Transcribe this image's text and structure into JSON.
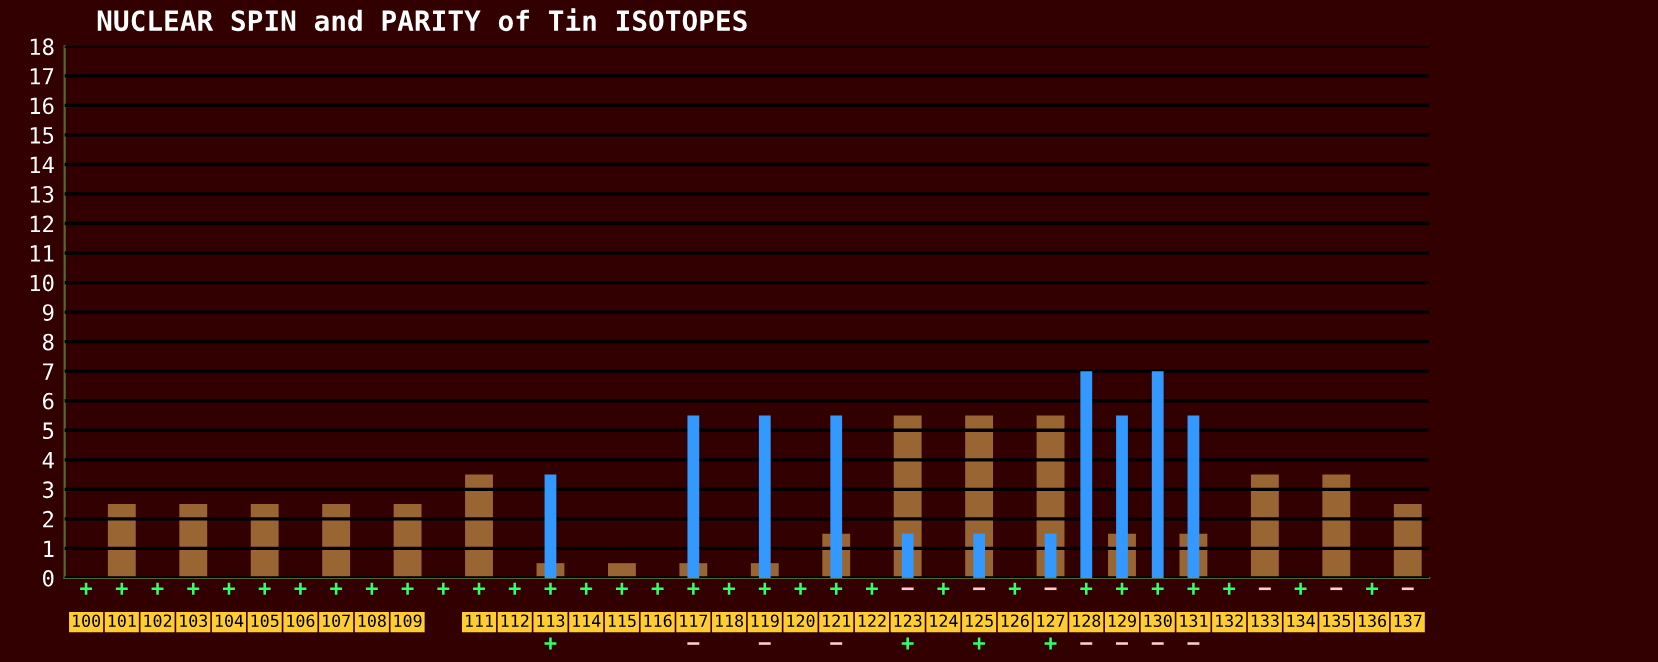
{
  "chart_data": {
    "type": "bar",
    "title": "NUCLEAR SPIN and PARITY of Tin ISOTOPES",
    "categories": [
      "100",
      "101",
      "102",
      "103",
      "104",
      "105",
      "106",
      "107",
      "108",
      "109",
      null,
      "111",
      "112",
      "113",
      "114",
      "115",
      "116",
      "117",
      "118",
      "119",
      "120",
      "121",
      "122",
      "123",
      "124",
      "125",
      "126",
      "127",
      "128",
      "129",
      "130",
      "131",
      "132",
      "133",
      "134",
      "135",
      "136",
      "137"
    ],
    "series": [
      {
        "color": "#996633",
        "values": [
          0,
          2.5,
          0,
          2.5,
          0,
          2.5,
          0,
          2.5,
          0,
          2.5,
          0,
          3.5,
          0,
          0.5,
          0,
          0.5,
          0,
          0.5,
          0,
          0.5,
          0,
          1.5,
          0,
          5.5,
          0,
          5.5,
          0,
          5.5,
          0,
          1.5,
          0,
          1.5,
          0,
          3.5,
          0,
          3.5,
          0,
          2.5
        ],
        "value_labels": [
          "+",
          "+",
          "+",
          "+",
          "+",
          "+",
          "+",
          "+",
          "+",
          "+",
          "+",
          "+",
          "+",
          "+",
          "+",
          "+",
          "+",
          "+",
          "+",
          "+",
          "+",
          "+",
          "+",
          "−",
          "+",
          "−",
          "+",
          "−",
          "+",
          "+",
          "+",
          "+",
          "+",
          "−",
          "+",
          "−",
          "+",
          "−"
        ]
      },
      {
        "color": "#3399ff",
        "values": [
          null,
          null,
          null,
          null,
          null,
          null,
          null,
          null,
          null,
          null,
          null,
          null,
          null,
          3.5,
          null,
          null,
          null,
          5.5,
          null,
          5.5,
          null,
          5.5,
          null,
          1.5,
          null,
          1.5,
          null,
          1.5,
          7,
          5.5,
          7,
          5.5,
          null,
          null,
          null,
          null,
          null,
          null
        ],
        "value_labels": [
          null,
          null,
          null,
          null,
          null,
          null,
          null,
          null,
          null,
          null,
          null,
          null,
          null,
          "+",
          null,
          null,
          null,
          "−",
          null,
          "−",
          null,
          "−",
          null,
          "+",
          null,
          "+",
          null,
          "+",
          "−",
          "−",
          "−",
          "−",
          null,
          null,
          null,
          null,
          null,
          null
        ]
      }
    ],
    "ylim": [
      0,
      18
    ],
    "yticks": [
      0,
      1,
      2,
      3,
      4,
      5,
      6,
      7,
      8,
      9,
      10,
      11,
      12,
      13,
      14,
      15,
      16,
      17,
      18
    ],
    "grid": "y"
  }
}
